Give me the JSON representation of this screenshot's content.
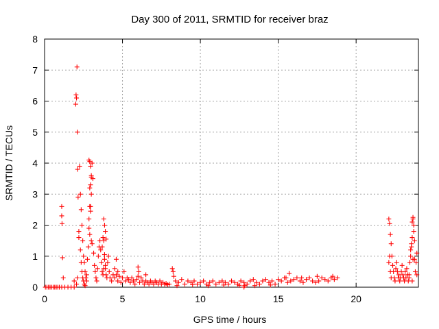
{
  "chart_data": {
    "type": "scatter",
    "title": "Day 300 of 2011, SRMTID for receiver braz",
    "xlabel": "GPS time / hours",
    "ylabel": "SRMTID / TECUs",
    "xlim": [
      0,
      24
    ],
    "ylim": [
      0,
      8
    ],
    "xticks": [
      0,
      5,
      10,
      15,
      20
    ],
    "yticks": [
      0,
      1,
      2,
      3,
      4,
      5,
      6,
      7,
      8
    ],
    "grid": true,
    "marker": "plus",
    "colors": {
      "series": "#ff0000",
      "grid": "#a0a0a0",
      "axes": "#000000"
    },
    "series": [
      {
        "x": [
          0.05,
          0.15,
          0.25,
          0.35,
          0.45,
          0.55,
          0.65,
          0.75,
          0.85,
          0.95,
          1.1,
          1.3,
          1.5,
          1.7,
          1.9,
          1.1,
          1.1,
          1.12,
          1.15,
          1.2,
          1.9,
          2.0,
          2.02,
          2.05,
          2.08,
          2.1,
          2.12,
          2.15,
          2.2,
          2.25,
          2.3,
          2.35,
          2.4,
          2.45,
          2.5,
          2.55,
          2.6,
          2.65,
          2.7,
          2.05,
          2.1,
          2.2,
          2.3,
          2.35,
          2.4,
          2.45,
          2.5,
          2.55,
          2.6,
          2.7,
          2.75,
          2.8,
          2.85,
          2.9,
          2.95,
          3.0,
          3.05,
          3.1,
          3.15,
          3.2,
          3.25,
          3.3,
          3.35,
          3.4,
          3.45,
          3.5,
          3.55,
          3.6,
          3.65,
          3.7,
          3.75,
          3.8,
          3.85,
          3.9,
          3.95,
          4.0,
          4.05,
          4.1,
          4.15,
          4.2,
          4.3,
          4.4,
          4.5,
          4.6,
          4.7,
          2.85,
          2.9,
          2.95,
          3.0,
          2.9,
          3.0,
          2.95,
          2.85,
          2.9,
          3.0,
          3.05,
          2.95,
          3.8,
          3.85,
          3.9,
          3.95,
          3.75,
          3.8,
          3.7,
          3.85,
          3.9,
          4.5,
          4.6,
          4.7,
          4.8,
          4.9,
          5.0,
          5.1,
          5.2,
          5.3,
          5.4,
          5.5,
          5.6,
          5.7,
          5.8,
          5.9,
          6.0,
          6.1,
          6.2,
          6.3,
          6.4,
          6.5,
          6.6,
          6.7,
          6.8,
          6.9,
          7.0,
          7.1,
          7.2,
          7.3,
          7.4,
          7.5,
          7.6,
          7.7,
          7.8,
          7.9,
          8.0,
          6.0,
          6.05,
          6.5,
          8.2,
          8.25,
          8.3,
          8.4,
          8.6,
          8.8,
          9.0,
          9.2,
          9.4,
          9.6,
          9.8,
          10.0,
          10.2,
          10.4,
          10.6,
          10.8,
          11.0,
          11.2,
          11.4,
          11.6,
          11.8,
          12.0,
          12.2,
          12.4,
          12.6,
          12.8,
          13.0,
          13.2,
          13.4,
          13.6,
          13.8,
          14.0,
          14.2,
          14.4,
          14.6,
          14.8,
          15.0,
          15.2,
          15.4,
          15.6,
          15.8,
          16.0,
          16.2,
          16.4,
          16.6,
          16.8,
          17.0,
          17.2,
          17.4,
          17.6,
          17.8,
          18.0,
          18.2,
          18.4,
          18.6,
          18.8,
          8.5,
          9.5,
          10.5,
          11.5,
          12.5,
          13.5,
          14.5,
          15.5,
          15.7,
          16.5,
          17.5,
          18.5,
          12.8,
          12.85,
          22.1,
          22.15,
          22.2,
          22.25,
          22.3,
          22.35,
          22.4,
          22.45,
          22.5,
          22.55,
          22.6,
          22.65,
          22.7,
          22.75,
          22.8,
          22.85,
          22.9,
          22.95,
          23.0,
          23.05,
          23.1,
          23.15,
          23.2,
          23.25,
          23.3,
          23.35,
          23.4,
          23.45,
          23.5,
          23.55,
          23.6,
          23.65,
          23.7,
          23.75,
          23.8,
          23.85,
          23.9,
          22.1,
          22.15,
          22.2,
          22.25,
          23.4,
          23.5,
          23.55,
          23.6,
          23.65,
          23.7,
          23.75,
          23.6,
          23.65,
          23.9
        ],
        "y": [
          0,
          0,
          0,
          0,
          0,
          0,
          0,
          0,
          0,
          0,
          0,
          0,
          0,
          0,
          0,
          2.6,
          2.3,
          2.05,
          0.95,
          0.3,
          0.2,
          5.9,
          6.2,
          6.1,
          7.1,
          5.0,
          3.8,
          2.9,
          1.8,
          3.9,
          3.0,
          2.5,
          2.0,
          1.5,
          1.0,
          0.8,
          0.5,
          0.3,
          0.2,
          0.1,
          0.3,
          1.6,
          1.2,
          0.8,
          0.5,
          0.3,
          0.2,
          0.1,
          0.05,
          0.4,
          0.9,
          1.3,
          2.2,
          2.6,
          3.3,
          3.6,
          4.0,
          3.5,
          1.1,
          0.7,
          0.5,
          0.3,
          0.2,
          0.6,
          1.0,
          1.3,
          1.5,
          1.2,
          0.8,
          0.5,
          0.4,
          0.6,
          0.9,
          0.7,
          0.4,
          0.3,
          0.8,
          1.0,
          0.5,
          0.3,
          0.2,
          0.4,
          0.6,
          0.9,
          0.5,
          4.1,
          4.05,
          3.9,
          3.55,
          3.2,
          3.0,
          2.6,
          1.9,
          1.7,
          1.5,
          1.4,
          2.45,
          2.2,
          2.0,
          1.8,
          1.55,
          1.6,
          1.5,
          1.3,
          1.05,
          0.6,
          0.3,
          0.4,
          0.2,
          0.35,
          0.15,
          0.3,
          0.5,
          0.2,
          0.3,
          0.25,
          0.15,
          0.3,
          0.2,
          0.1,
          0.25,
          0.35,
          0.15,
          0.3,
          0.2,
          0.1,
          0.2,
          0.15,
          0.1,
          0.2,
          0.15,
          0.1,
          0.2,
          0.15,
          0.1,
          0.2,
          0.1,
          0.15,
          0.1,
          0.12,
          0.08,
          0.1,
          0.65,
          0.5,
          0.4,
          0.6,
          0.5,
          0.35,
          0.2,
          0.15,
          0.25,
          0.1,
          0.2,
          0.15,
          0.2,
          0.1,
          0.15,
          0.2,
          0.1,
          0.15,
          0.2,
          0.1,
          0.15,
          0.2,
          0.15,
          0.1,
          0.2,
          0.15,
          0.1,
          0.2,
          0.15,
          0.1,
          0.2,
          0.25,
          0.15,
          0.1,
          0.2,
          0.25,
          0.15,
          0.2,
          0.1,
          0.25,
          0.2,
          0.3,
          0.15,
          0.2,
          0.25,
          0.3,
          0.2,
          0.15,
          0.25,
          0.3,
          0.2,
          0.15,
          0.2,
          0.3,
          0.25,
          0.2,
          0.3,
          0.25,
          0.3,
          0.05,
          0.08,
          0.05,
          0.07,
          0.06,
          0.05,
          0.07,
          0.3,
          0.45,
          0.3,
          0.35,
          0.35,
          0.0,
          0.05,
          2.2,
          2.05,
          1.7,
          1.4,
          1.0,
          0.7,
          0.5,
          0.3,
          0.2,
          0.6,
          0.8,
          0.5,
          0.3,
          0.4,
          0.2,
          0.3,
          0.5,
          0.7,
          0.4,
          0.3,
          0.2,
          0.5,
          0.3,
          0.6,
          0.4,
          0.2,
          0.3,
          0.8,
          1.0,
          1.3,
          1.6,
          2.2,
          1.8,
          0.9,
          0.5,
          0.8,
          1.1,
          0.8,
          1.0,
          0.5,
          0.3,
          0.4,
          1.2,
          1.4,
          2.1,
          2.25,
          2.0,
          1.5,
          0.2,
          0.9,
          0.4
        ]
      }
    ]
  }
}
